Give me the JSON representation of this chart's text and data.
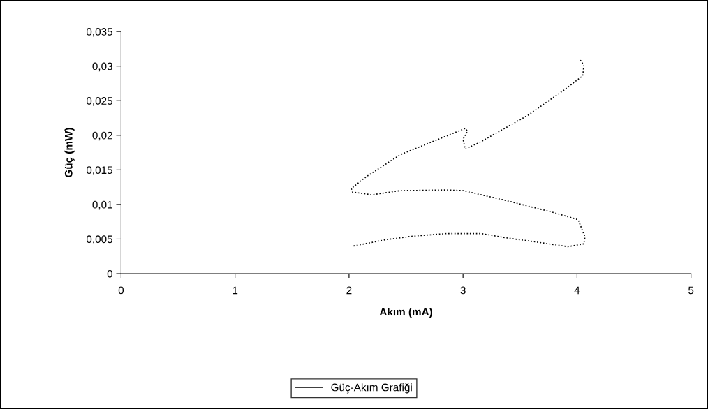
{
  "chart_data": {
    "type": "line",
    "xlabel": "Akım (mA)",
    "ylabel": "Güç (mW)",
    "series": [
      {
        "name": "Güç-Akım Grafiği",
        "color": "#000000",
        "line_style": "dotted",
        "x": [
          2.04,
          2.32,
          2.55,
          2.86,
          3.16,
          3.37,
          3.63,
          3.92,
          4.06,
          4.07,
          4.01,
          3.78,
          3.37,
          3.0,
          2.85,
          2.45,
          2.2,
          2.03,
          2.02,
          2.15,
          2.45,
          2.84,
          3.02,
          3.04,
          3.0,
          3.02,
          3.16,
          3.57,
          3.9,
          4.05,
          4.06,
          4.02
        ],
        "values": [
          0.004,
          0.0049,
          0.0054,
          0.0058,
          0.0058,
          0.0052,
          0.0046,
          0.0039,
          0.0043,
          0.0053,
          0.0078,
          0.0089,
          0.0106,
          0.012,
          0.0121,
          0.012,
          0.0114,
          0.0118,
          0.0123,
          0.014,
          0.0172,
          0.0198,
          0.021,
          0.0206,
          0.0194,
          0.018,
          0.0191,
          0.0229,
          0.0267,
          0.0286,
          0.0301,
          0.0311
        ]
      }
    ],
    "xlim": [
      0,
      5
    ],
    "xticks": [
      0,
      1,
      2,
      3,
      4,
      5
    ],
    "ylim": [
      0,
      0.035
    ],
    "yticks": [
      0,
      {
        "value": 0.005,
        "label": "0,005"
      },
      {
        "value": 0.01,
        "label": "0,01"
      },
      {
        "value": 0.015,
        "label": "0,015"
      },
      {
        "value": 0.02,
        "label": "0,02"
      },
      {
        "value": 0.025,
        "label": "0,025"
      },
      {
        "value": 0.03,
        "label": "0,03"
      },
      {
        "value": 0.035,
        "label": "0,035"
      }
    ],
    "grid": false,
    "legend": "bottom",
    "marker": "none"
  }
}
